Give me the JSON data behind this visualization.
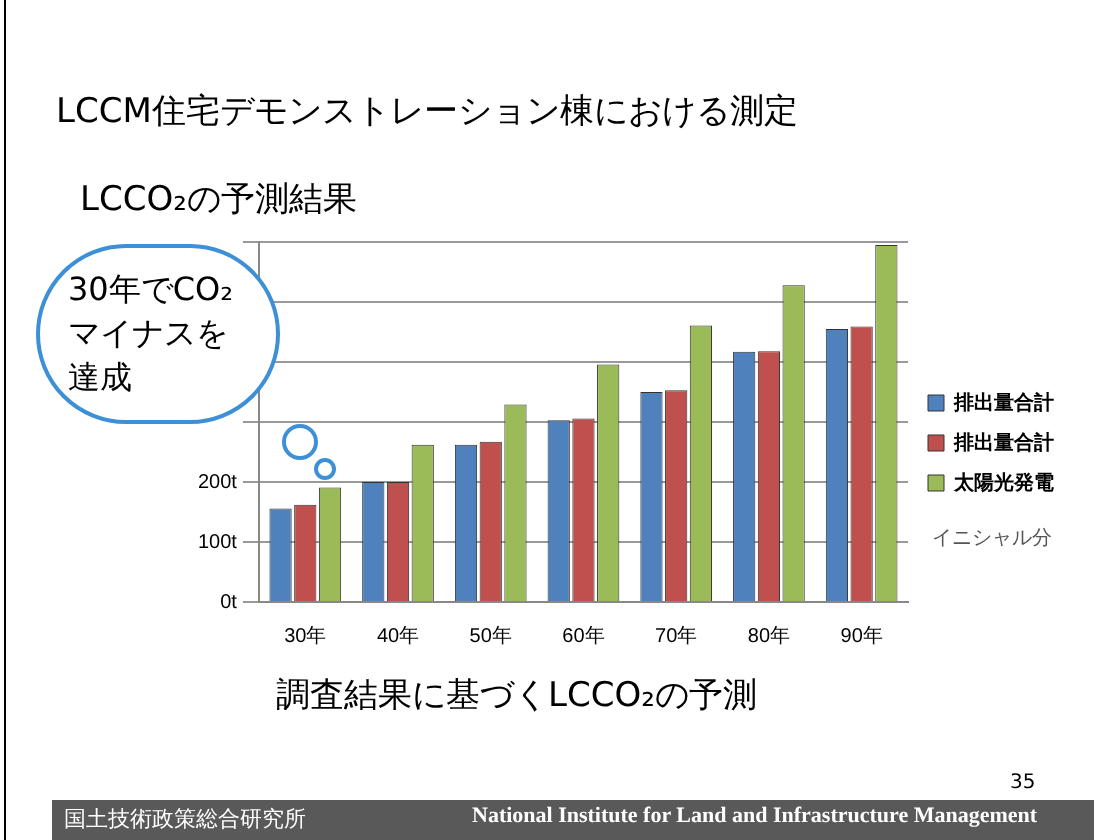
{
  "chart_data": {
    "type": "bar",
    "title": "LCCM住宅デモンストレーション棟における測定",
    "subtitle": "LCCO₂の予測結果",
    "categories": [
      "30年",
      "40年",
      "50年",
      "60年",
      "70年",
      "80年",
      "90年"
    ],
    "series": [
      {
        "name": "排出量合計",
        "color": "#4f81bd",
        "values": [
          156,
          200,
          262,
          303,
          350,
          417,
          455
        ]
      },
      {
        "name": "排出量合計",
        "color": "#c0504d",
        "values": [
          162,
          200,
          267,
          306,
          353,
          418,
          459
        ]
      },
      {
        "name": "太陽光発電",
        "color": "#9bbb59",
        "values": [
          191,
          262,
          329,
          396,
          461,
          528,
          595
        ]
      }
    ],
    "ylim": [
      0,
      600
    ],
    "yticks": [
      {
        "value": 0,
        "label": "0t"
      },
      {
        "value": 100,
        "label": "100t"
      },
      {
        "value": 200,
        "label": "200t"
      },
      {
        "value": 300,
        "label": null
      },
      {
        "value": 400,
        "label": null
      },
      {
        "value": 500,
        "label": null
      },
      {
        "value": 600,
        "label": null
      }
    ],
    "grid": "y",
    "legend": "right",
    "annotations": [
      "30年でCO₂マイナスを達成",
      "調査結果に基づくLCCO₂の予測",
      "国土技術政策総合研究所",
      "National Institute for Land and Infrastructure Management",
      "35",
      "イニシャル分"
    ]
  }
}
